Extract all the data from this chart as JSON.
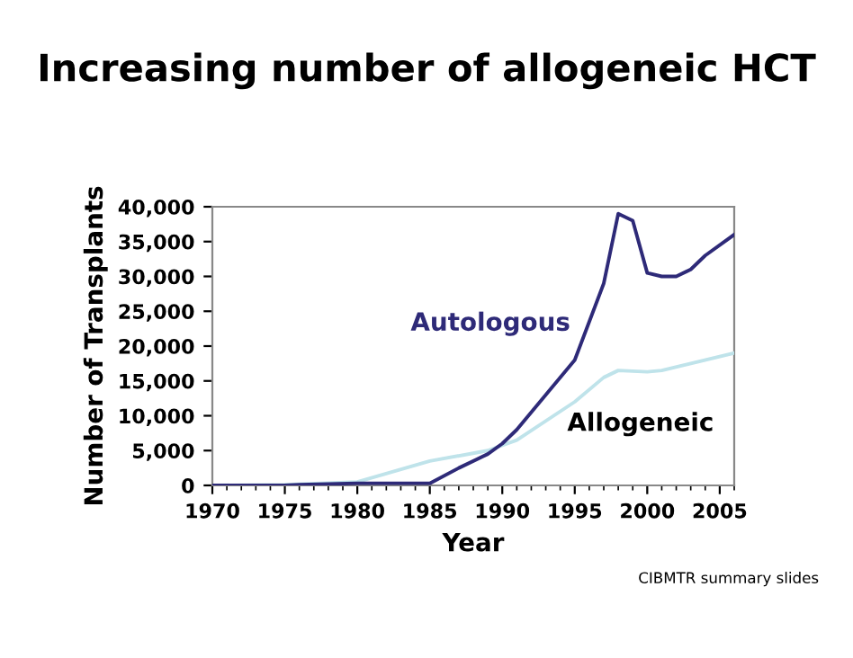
{
  "chart_data": {
    "type": "line",
    "title": "Increasing number of allogeneic HCT",
    "xlabel": "Year",
    "ylabel": "Number of Transplants",
    "annotations": [
      "CIBMTR summary slides"
    ],
    "series": [
      {
        "name": "Autologous",
        "color": "#2e2a78",
        "x": [
          1970,
          1975,
          1976,
          1980,
          1985,
          1987,
          1989,
          1990,
          1991,
          1993,
          1995,
          1997,
          1998,
          1999,
          2000,
          2001,
          2002,
          2003,
          2004,
          2006
        ],
        "values": [
          0,
          0,
          100,
          300,
          300,
          2500,
          4500,
          6000,
          8000,
          13000,
          18000,
          29000,
          39000,
          38000,
          30500,
          30000,
          30000,
          31000,
          33000,
          36000
        ]
      },
      {
        "name": "Allogeneic",
        "color": "#bfe3ea",
        "x": [
          1970,
          1975,
          1980,
          1985,
          1989,
          1991,
          1995,
          1997,
          1998,
          2000,
          2001,
          2006
        ],
        "values": [
          0,
          100,
          500,
          3500,
          5000,
          6500,
          12000,
          15500,
          16500,
          16300,
          16500,
          19000
        ]
      }
    ],
    "xlim": [
      1970,
      2006
    ],
    "xticks": [
      1970,
      1975,
      1980,
      1985,
      1990,
      1995,
      2000,
      2005
    ],
    "ylim": [
      0,
      40000
    ],
    "yticks": [
      {
        "value": 0,
        "label": "0"
      },
      {
        "value": 5000,
        "label": "5,000"
      },
      {
        "value": 10000,
        "label": "10,000"
      },
      {
        "value": 15000,
        "label": "15,000"
      },
      {
        "value": 20000,
        "label": "20,000"
      },
      {
        "value": 25000,
        "label": "25,000"
      },
      {
        "value": 30000,
        "label": "30,000"
      },
      {
        "value": 35000,
        "label": "35,000"
      },
      {
        "value": 40000,
        "label": "40,000"
      }
    ],
    "grid": false,
    "legend": false,
    "marker": "none",
    "line_style": "solid"
  }
}
